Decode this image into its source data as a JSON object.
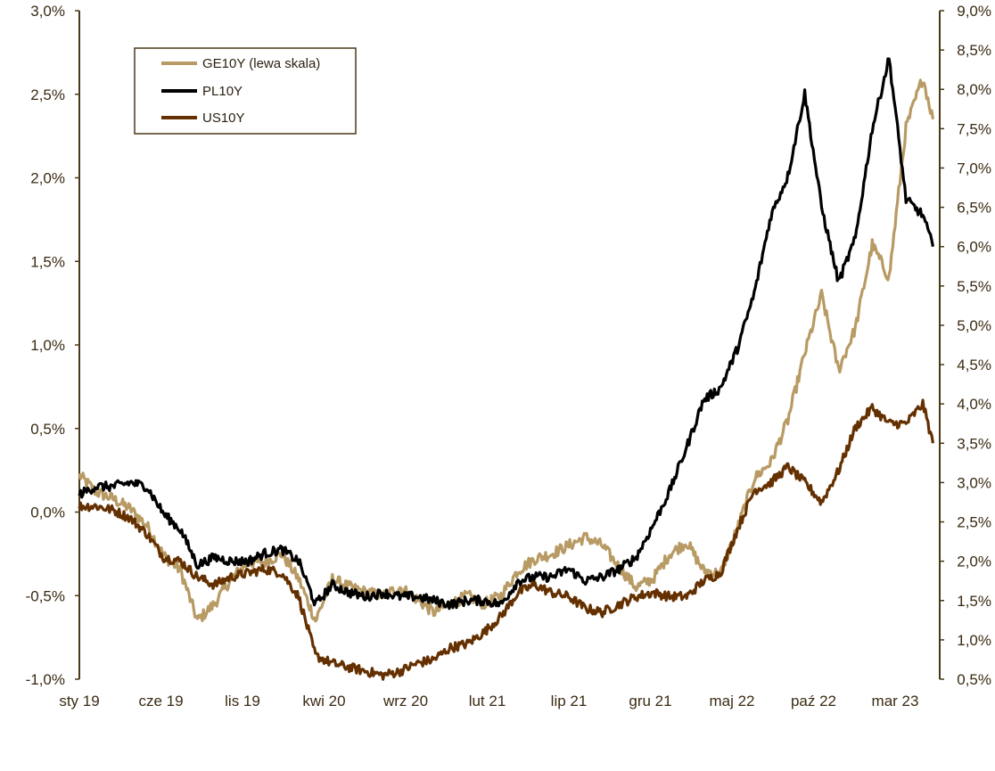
{
  "chart_data": {
    "type": "line",
    "title": "",
    "xlabel": "",
    "ylabel_left": "",
    "ylabel_right": "",
    "x_ticks": [
      "sty 19",
      "cze 19",
      "lis 19",
      "kwi 20",
      "wrz 20",
      "lut 21",
      "lip 21",
      "gru 21",
      "maj 22",
      "paź 22",
      "mar 23"
    ],
    "x_range_months": [
      0,
      51
    ],
    "left_axis": {
      "min": -1.0,
      "max": 3.0,
      "step": 0.5,
      "tick_labels": [
        "-1,0%",
        "-0,5%",
        "0,0%",
        "0,5%",
        "1,0%",
        "1,5%",
        "2,0%",
        "2,5%",
        "3,0%"
      ]
    },
    "right_axis": {
      "min": 0.5,
      "max": 9.0,
      "step": 0.5,
      "tick_labels": [
        "0,5%",
        "1,0%",
        "1,5%",
        "2,0%",
        "2,5%",
        "3,0%",
        "3,5%",
        "4,0%",
        "4,5%",
        "5,0%",
        "5,5%",
        "6,0%",
        "6,5%",
        "7,0%",
        "7,5%",
        "8,0%",
        "8,5%",
        "9,0%"
      ]
    },
    "legend_position": "top-left",
    "series": [
      {
        "name": "GE10Y (lewa skala)",
        "axis": "left",
        "color": "#b89a64",
        "points": [
          [
            0,
            0.22
          ],
          [
            1,
            0.12
          ],
          [
            2,
            0.08
          ],
          [
            3,
            0.02
          ],
          [
            4,
            -0.08
          ],
          [
            5,
            -0.26
          ],
          [
            6,
            -0.35
          ],
          [
            7,
            -0.65
          ],
          [
            8,
            -0.55
          ],
          [
            9,
            -0.4
          ],
          [
            10,
            -0.3
          ],
          [
            11,
            -0.3
          ],
          [
            12,
            -0.25
          ],
          [
            13,
            -0.4
          ],
          [
            14,
            -0.65
          ],
          [
            15,
            -0.4
          ],
          [
            16,
            -0.45
          ],
          [
            17,
            -0.48
          ],
          [
            18,
            -0.5
          ],
          [
            19,
            -0.45
          ],
          [
            20,
            -0.52
          ],
          [
            21,
            -0.6
          ],
          [
            22,
            -0.55
          ],
          [
            23,
            -0.5
          ],
          [
            24,
            -0.55
          ],
          [
            25,
            -0.5
          ],
          [
            26,
            -0.35
          ],
          [
            27,
            -0.28
          ],
          [
            28,
            -0.25
          ],
          [
            29,
            -0.2
          ],
          [
            30,
            -0.15
          ],
          [
            31,
            -0.2
          ],
          [
            32,
            -0.33
          ],
          [
            33,
            -0.45
          ],
          [
            34,
            -0.4
          ],
          [
            35,
            -0.25
          ],
          [
            36,
            -0.18
          ],
          [
            37,
            -0.35
          ],
          [
            38,
            -0.37
          ],
          [
            39,
            -0.1
          ],
          [
            40,
            0.2
          ],
          [
            41,
            0.3
          ],
          [
            42,
            0.55
          ],
          [
            43,
            0.95
          ],
          [
            44,
            1.3
          ],
          [
            45,
            0.85
          ],
          [
            46,
            1.1
          ],
          [
            47,
            1.6
          ],
          [
            48,
            1.4
          ],
          [
            49,
            2.3
          ],
          [
            50,
            2.6
          ],
          [
            50.6,
            2.35
          ]
        ]
      },
      {
        "name": "PL10Y",
        "axis": "right",
        "color": "#000000",
        "points": [
          [
            0,
            2.85
          ],
          [
            1,
            2.95
          ],
          [
            2,
            2.95
          ],
          [
            3,
            3.0
          ],
          [
            4,
            2.95
          ],
          [
            5,
            2.6
          ],
          [
            6,
            2.4
          ],
          [
            7,
            1.95
          ],
          [
            8,
            2.05
          ],
          [
            9,
            2.0
          ],
          [
            10,
            2.0
          ],
          [
            11,
            2.1
          ],
          [
            12,
            2.15
          ],
          [
            13,
            2.0
          ],
          [
            14,
            1.45
          ],
          [
            15,
            1.7
          ],
          [
            16,
            1.6
          ],
          [
            17,
            1.55
          ],
          [
            18,
            1.6
          ],
          [
            19,
            1.55
          ],
          [
            20,
            1.55
          ],
          [
            21,
            1.5
          ],
          [
            22,
            1.45
          ],
          [
            23,
            1.5
          ],
          [
            24,
            1.5
          ],
          [
            25,
            1.45
          ],
          [
            26,
            1.75
          ],
          [
            27,
            1.8
          ],
          [
            28,
            1.8
          ],
          [
            29,
            1.9
          ],
          [
            30,
            1.75
          ],
          [
            31,
            1.8
          ],
          [
            32,
            1.9
          ],
          [
            33,
            2.05
          ],
          [
            34,
            2.45
          ],
          [
            35,
            2.9
          ],
          [
            36,
            3.45
          ],
          [
            37,
            4.05
          ],
          [
            38,
            4.2
          ],
          [
            39,
            4.7
          ],
          [
            40,
            5.4
          ],
          [
            41,
            6.4
          ],
          [
            42,
            6.9
          ],
          [
            43,
            7.95
          ],
          [
            44,
            6.5
          ],
          [
            45,
            5.55
          ],
          [
            46,
            6.1
          ],
          [
            47,
            7.5
          ],
          [
            48,
            8.4
          ],
          [
            49,
            6.6
          ],
          [
            50,
            6.4
          ],
          [
            50.6,
            6.0
          ]
        ]
      },
      {
        "name": "US10Y",
        "axis": "right",
        "color": "#643000",
        "points": [
          [
            0,
            2.7
          ],
          [
            1,
            2.7
          ],
          [
            2,
            2.65
          ],
          [
            3,
            2.55
          ],
          [
            4,
            2.35
          ],
          [
            5,
            2.05
          ],
          [
            6,
            2.0
          ],
          [
            7,
            1.8
          ],
          [
            8,
            1.7
          ],
          [
            9,
            1.8
          ],
          [
            10,
            1.85
          ],
          [
            11,
            1.9
          ],
          [
            12,
            1.85
          ],
          [
            13,
            1.55
          ],
          [
            14,
            0.8
          ],
          [
            15,
            0.7
          ],
          [
            16,
            0.65
          ],
          [
            17,
            0.6
          ],
          [
            18,
            0.55
          ],
          [
            19,
            0.6
          ],
          [
            20,
            0.7
          ],
          [
            21,
            0.75
          ],
          [
            22,
            0.9
          ],
          [
            23,
            0.95
          ],
          [
            24,
            1.1
          ],
          [
            25,
            1.3
          ],
          [
            26,
            1.6
          ],
          [
            27,
            1.7
          ],
          [
            28,
            1.6
          ],
          [
            29,
            1.55
          ],
          [
            30,
            1.4
          ],
          [
            31,
            1.35
          ],
          [
            32,
            1.45
          ],
          [
            33,
            1.55
          ],
          [
            34,
            1.6
          ],
          [
            35,
            1.55
          ],
          [
            36,
            1.55
          ],
          [
            37,
            1.75
          ],
          [
            38,
            1.85
          ],
          [
            39,
            2.4
          ],
          [
            40,
            2.9
          ],
          [
            41,
            3.0
          ],
          [
            42,
            3.2
          ],
          [
            43,
            3.0
          ],
          [
            44,
            2.75
          ],
          [
            45,
            3.15
          ],
          [
            46,
            3.7
          ],
          [
            47,
            3.95
          ],
          [
            48,
            3.75
          ],
          [
            49,
            3.75
          ],
          [
            50,
            4.0
          ],
          [
            50.6,
            3.5
          ]
        ]
      }
    ]
  }
}
